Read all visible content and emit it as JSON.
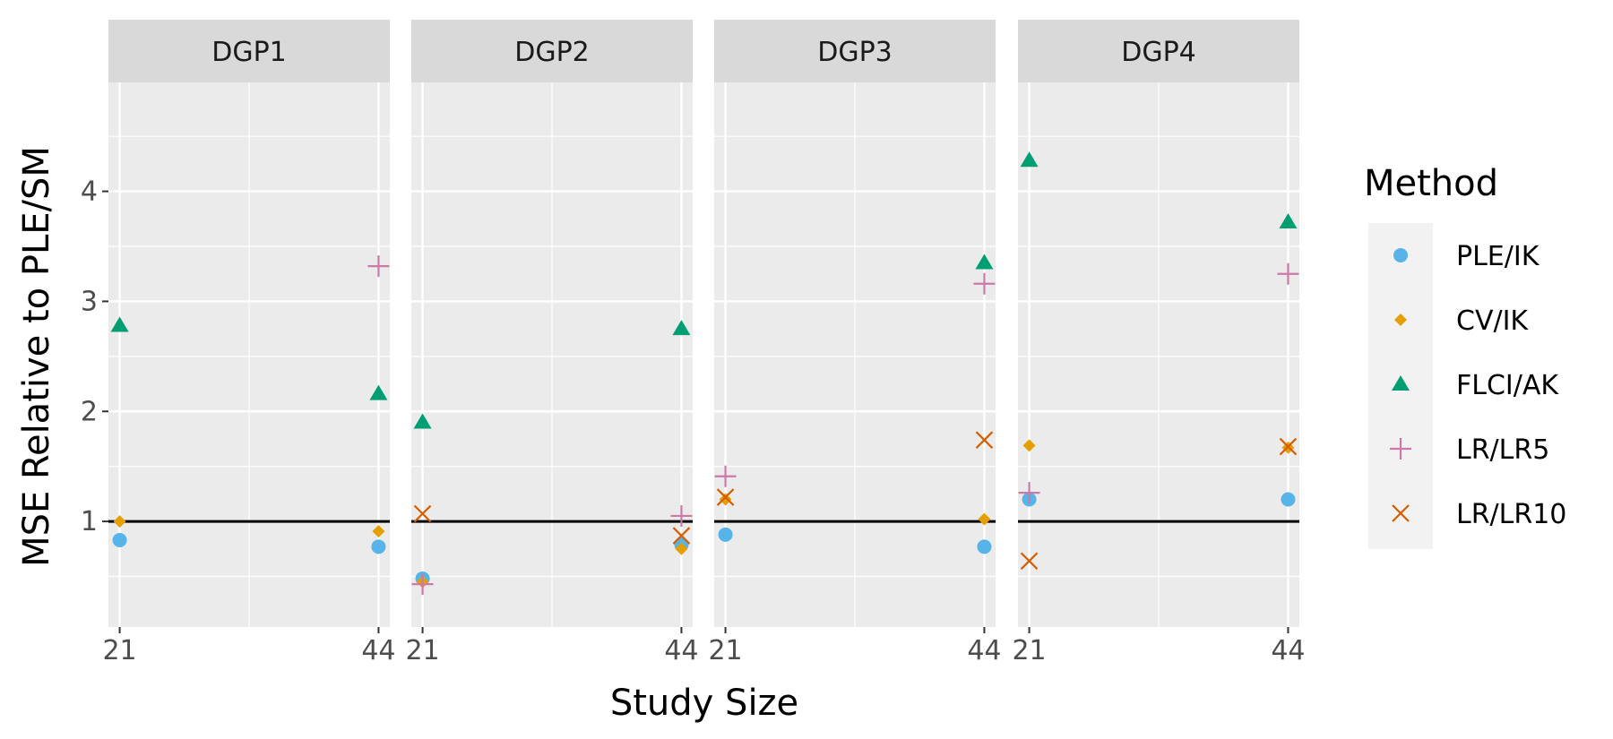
{
  "chart_data": {
    "type": "scatter",
    "xlabel": "Study Size",
    "ylabel": "MSE Relative to PLE/SM",
    "x_ticks": [
      21,
      44
    ],
    "x_range": [
      20,
      45
    ],
    "y_ticks": [
      1,
      2,
      3,
      4
    ],
    "y_range": [
      0.04,
      4.99
    ],
    "reference_line_y": 1,
    "grid": true,
    "legend": {
      "title": "Method",
      "position": "right"
    },
    "methods": [
      {
        "name": "PLE/IK",
        "shape": "circle",
        "color": "#56B4E9"
      },
      {
        "name": "CV/IK",
        "shape": "diamond",
        "color": "#E69F00"
      },
      {
        "name": "FLCI/AK",
        "shape": "triangle",
        "color": "#009E73"
      },
      {
        "name": "LR/LR5",
        "shape": "plus",
        "color": "#CC79A7"
      },
      {
        "name": "LR/LR10",
        "shape": "cross",
        "color": "#D55E00"
      }
    ],
    "panels": [
      {
        "label": "DGP1",
        "points": [
          {
            "method": "PLE/IK",
            "x": 21,
            "y": 0.83
          },
          {
            "method": "PLE/IK",
            "x": 44,
            "y": 0.77
          },
          {
            "method": "CV/IK",
            "x": 21,
            "y": 1.0
          },
          {
            "method": "CV/IK",
            "x": 44,
            "y": 0.91
          },
          {
            "method": "FLCI/AK",
            "x": 21,
            "y": 2.78
          },
          {
            "method": "FLCI/AK",
            "x": 44,
            "y": 2.16
          },
          {
            "method": "LR/LR5",
            "x": 44,
            "y": 3.32
          }
        ]
      },
      {
        "label": "DGP2",
        "points": [
          {
            "method": "PLE/IK",
            "x": 21,
            "y": 0.48
          },
          {
            "method": "PLE/IK",
            "x": 44,
            "y": 0.79
          },
          {
            "method": "CV/IK",
            "x": 21,
            "y": 0.45
          },
          {
            "method": "CV/IK",
            "x": 44,
            "y": 0.75
          },
          {
            "method": "FLCI/AK",
            "x": 21,
            "y": 1.9
          },
          {
            "method": "FLCI/AK",
            "x": 44,
            "y": 2.75
          },
          {
            "method": "LR/LR5",
            "x": 21,
            "y": 0.43
          },
          {
            "method": "LR/LR5",
            "x": 44,
            "y": 1.05
          },
          {
            "method": "LR/LR10",
            "x": 21,
            "y": 1.07
          },
          {
            "method": "LR/LR10",
            "x": 44,
            "y": 0.87
          }
        ]
      },
      {
        "label": "DGP3",
        "points": [
          {
            "method": "PLE/IK",
            "x": 21,
            "y": 0.88
          },
          {
            "method": "PLE/IK",
            "x": 44,
            "y": 0.77
          },
          {
            "method": "CV/IK",
            "x": 21,
            "y": 1.2
          },
          {
            "method": "CV/IK",
            "x": 44,
            "y": 1.02
          },
          {
            "method": "FLCI/AK",
            "x": 44,
            "y": 3.35
          },
          {
            "method": "LR/LR5",
            "x": 21,
            "y": 1.41
          },
          {
            "method": "LR/LR5",
            "x": 44,
            "y": 3.16
          },
          {
            "method": "LR/LR10",
            "x": 21,
            "y": 1.22
          },
          {
            "method": "LR/LR10",
            "x": 44,
            "y": 1.74
          }
        ]
      },
      {
        "label": "DGP4",
        "points": [
          {
            "method": "PLE/IK",
            "x": 21,
            "y": 1.2
          },
          {
            "method": "PLE/IK",
            "x": 44,
            "y": 1.2
          },
          {
            "method": "CV/IK",
            "x": 21,
            "y": 1.69
          },
          {
            "method": "CV/IK",
            "x": 44,
            "y": 1.67
          },
          {
            "method": "FLCI/AK",
            "x": 21,
            "y": 4.28
          },
          {
            "method": "FLCI/AK",
            "x": 44,
            "y": 3.72
          },
          {
            "method": "LR/LR5",
            "x": 21,
            "y": 1.26
          },
          {
            "method": "LR/LR5",
            "x": 44,
            "y": 3.25
          },
          {
            "method": "LR/LR10",
            "x": 21,
            "y": 0.64
          },
          {
            "method": "LR/LR10",
            "x": 44,
            "y": 1.68
          }
        ]
      }
    ]
  }
}
